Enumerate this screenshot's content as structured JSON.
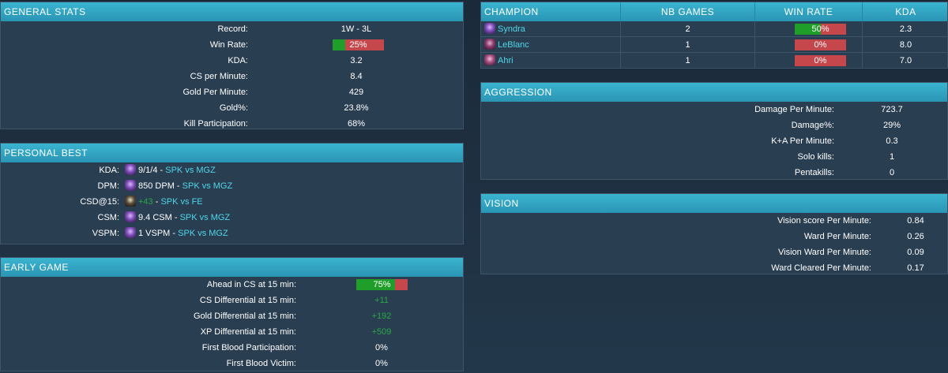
{
  "general_stats": {
    "title": "GENERAL STATS",
    "rows": [
      {
        "label": "Record:",
        "value": "1W - 3L"
      },
      {
        "label": "Win Rate:",
        "value": "25%",
        "bar": 0.25
      },
      {
        "label": "KDA:",
        "value": "3.2"
      },
      {
        "label": "CS per Minute:",
        "value": "8.4"
      },
      {
        "label": "Gold Per Minute:",
        "value": "429"
      },
      {
        "label": "Gold%:",
        "value": "23.8%"
      },
      {
        "label": "Kill Participation:",
        "value": "68%"
      }
    ]
  },
  "personal_best": {
    "title": "PERSONAL BEST",
    "rows": [
      {
        "label": "KDA:",
        "icon": "syndra-icon",
        "value": "9/1/4",
        "sep": " - ",
        "match": "SPK vs MGZ"
      },
      {
        "label": "DPM:",
        "icon": "syndra-icon",
        "value": "850 DPM",
        "sep": " - ",
        "match": "SPK vs MGZ"
      },
      {
        "label": "CSD@15:",
        "icon": "ekko-icon",
        "value": "+43",
        "sep": " - ",
        "match": "SPK vs FE"
      },
      {
        "label": "CSM:",
        "icon": "syndra-icon",
        "value": "9.4 CSM",
        "sep": " - ",
        "match": "SPK vs MGZ"
      },
      {
        "label": "VSPM:",
        "icon": "syndra-icon",
        "value": "1 VSPM",
        "sep": " - ",
        "match": "SPK vs MGZ"
      }
    ]
  },
  "early_game": {
    "title": "EARLY GAME",
    "rows": [
      {
        "label": "Ahead in CS at 15 min:",
        "value": "75%",
        "bar": 0.75
      },
      {
        "label": "CS Differential at 15 min:",
        "value": "+11"
      },
      {
        "label": "Gold Differential at 15 min:",
        "value": "+192"
      },
      {
        "label": "XP Differential at 15 min:",
        "value": "+509"
      },
      {
        "label": "First Blood Participation:",
        "value": "0%"
      },
      {
        "label": "First Blood Victim:",
        "value": "0%"
      }
    ]
  },
  "champion_table": {
    "headers": {
      "champion": "CHAMPION",
      "games": "NB GAMES",
      "winrate": "WIN RATE",
      "kda": "KDA"
    },
    "rows": [
      {
        "icon": "syndra-icon",
        "name": "Syndra",
        "games": "2",
        "winrate": "50%",
        "bar": 0.5,
        "kda": "2.3"
      },
      {
        "icon": "leblanc-icon",
        "name": "LeBlanc",
        "games": "1",
        "winrate": "0%",
        "bar": 0,
        "kda": "8.0"
      },
      {
        "icon": "ahri-icon",
        "name": "Ahri",
        "games": "1",
        "winrate": "0%",
        "bar": 0,
        "kda": "7.0"
      }
    ]
  },
  "aggression": {
    "title": "AGGRESSION",
    "rows": [
      {
        "label": "Damage Per Minute:",
        "value": "723.7"
      },
      {
        "label": "Damage%:",
        "value": "29%"
      },
      {
        "label": "K+A Per Minute:",
        "value": "0.3"
      },
      {
        "label": "Solo kills:",
        "value": "1"
      },
      {
        "label": "Pentakills:",
        "value": "0"
      }
    ]
  },
  "vision": {
    "title": "VISION",
    "rows": [
      {
        "label": "Vision score Per Minute:",
        "value": "0.84"
      },
      {
        "label": "Ward Per Minute:",
        "value": "0.26"
      },
      {
        "label": "Vision Ward Per Minute:",
        "value": "0.09"
      },
      {
        "label": "Ward Cleared Per Minute:",
        "value": "0.17"
      }
    ]
  },
  "colors": {
    "header": "#2a95b4",
    "win": "#1f9e2a",
    "loss": "#c6474b",
    "link": "#4fd6e8",
    "positive": "#28a745"
  }
}
